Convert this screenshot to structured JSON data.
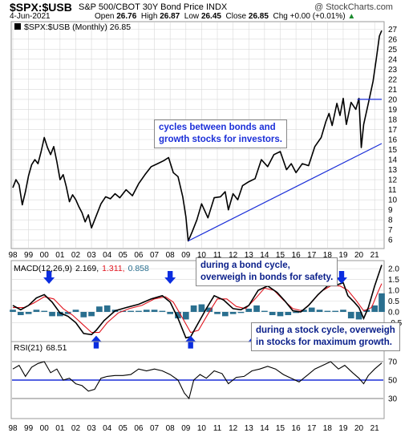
{
  "header": {
    "symbol": "$SPX:$USB",
    "name": "S&P 500/CBOT 30Y Bond Price INDX",
    "date": "4-Jun-2021",
    "open_label": "Open",
    "open": "26.76",
    "high_label": "High",
    "high": "26.87",
    "low_label": "Low",
    "low": "26.45",
    "close_label": "Close",
    "close": "26.85",
    "chg_label": "Chg",
    "chg": "+0.00 (+0.01%)",
    "chg_arrow": "▲",
    "logo": "@ StockCharts.com"
  },
  "colors": {
    "price": "#000000",
    "macd": "#000000",
    "signal": "#e0141e",
    "histogram": "#2a6f8f",
    "trendline": "#1b2fd8",
    "arrow": "#0b2de0",
    "rsi_band": "#1b2fd8",
    "grid": "#d9d9d9"
  },
  "annotations": {
    "callout1_line1": "cycles between bonds and",
    "callout1_line2": "growth stocks for investors.",
    "callout2_line1": "during a bond cycle,",
    "callout2_line2": "overweigh in bonds for safety.",
    "callout3_line1": "during a stock cycle, overweigh",
    "callout3_line2": "in stocks for maximum growth."
  },
  "chart_data": [
    {
      "type": "line",
      "title": "$SPX:$USB (Monthly) 26.85",
      "x_labels": [
        "98",
        "99",
        "00",
        "01",
        "02",
        "03",
        "04",
        "05",
        "06",
        "07",
        "08",
        "09",
        "10",
        "11",
        "12",
        "13",
        "14",
        "15",
        "16",
        "17",
        "18",
        "19",
        "20",
        "21"
      ],
      "x_range": [
        1998.0,
        2021.5
      ],
      "ylim": [
        5.3,
        27.5
      ],
      "y_ticks": [
        6,
        7,
        8,
        9,
        10,
        11,
        12,
        13,
        14,
        15,
        16,
        17,
        18,
        19,
        20,
        21,
        22,
        23,
        24,
        25,
        26,
        27
      ],
      "grid": true,
      "series": [
        {
          "x": [
            1998.0,
            1998.2,
            1998.4,
            1998.6,
            1998.8,
            1999.0,
            1999.2,
            1999.4,
            1999.6,
            1999.8,
            2000.0,
            2000.2,
            2000.4,
            2000.6,
            2000.8,
            2001.0,
            2001.2,
            2001.4,
            2001.6,
            2001.8,
            2002.0,
            2002.2,
            2002.4,
            2002.6,
            2002.8,
            2003.0,
            2003.3,
            2003.6,
            2003.9,
            2004.2,
            2004.5,
            2004.8,
            2005.2,
            2005.6,
            2006.0,
            2006.4,
            2006.8,
            2007.2,
            2007.6,
            2007.9,
            2008.2,
            2008.5,
            2008.8,
            2009.0,
            2009.15,
            2009.4,
            2009.7,
            2010.0,
            2010.4,
            2010.8,
            2011.2,
            2011.5,
            2011.7,
            2012.0,
            2012.3,
            2012.6,
            2013.0,
            2013.4,
            2013.8,
            2014.2,
            2014.6,
            2015.0,
            2015.4,
            2015.7,
            2016.0,
            2016.4,
            2016.8,
            2017.2,
            2017.6,
            2017.9,
            2018.1,
            2018.3,
            2018.6,
            2018.8,
            2019.0,
            2019.2,
            2019.5,
            2019.8,
            2020.0,
            2020.15,
            2020.3,
            2020.6,
            2020.9,
            2021.1,
            2021.3,
            2021.45
          ],
          "y": [
            11.2,
            12.0,
            11.5,
            9.5,
            10.8,
            12.4,
            13.5,
            14.0,
            13.6,
            14.8,
            16.2,
            15.2,
            14.5,
            15.3,
            13.8,
            12.0,
            12.5,
            11.3,
            9.8,
            10.5,
            10.0,
            9.3,
            8.7,
            7.8,
            8.5,
            7.2,
            8.4,
            9.6,
            10.3,
            10.1,
            10.6,
            10.2,
            11.0,
            10.4,
            11.6,
            12.5,
            13.3,
            13.6,
            13.9,
            14.2,
            12.7,
            12.3,
            10.3,
            8.3,
            5.9,
            6.8,
            8.0,
            9.6,
            8.2,
            10.2,
            10.3,
            10.8,
            9.0,
            10.6,
            10.0,
            11.4,
            11.8,
            12.1,
            14.0,
            13.3,
            14.5,
            14.8,
            13.0,
            13.6,
            12.7,
            13.6,
            13.4,
            15.3,
            16.2,
            17.8,
            18.6,
            17.4,
            19.6,
            18.4,
            20.1,
            17.5,
            19.7,
            19.0,
            20.1,
            15.2,
            17.5,
            19.6,
            21.8,
            24.0,
            26.3,
            26.85
          ]
        },
        {
          "x": [
            2009.15,
            2021.45
          ],
          "y": [
            5.9,
            15.6
          ]
        },
        {
          "x": [
            2019.9,
            2021.45
          ],
          "y": [
            20.0,
            20.0
          ]
        }
      ]
    },
    {
      "type": "line",
      "title": "MACD(12,26,9) 2.169, 1.311, 0.858",
      "title_parts": [
        "MACD(12,26,9)",
        "2.169,",
        "1.311,",
        "0.858"
      ],
      "ylim": [
        -1.3,
        2.3
      ],
      "y_ticks": [
        -0.5,
        0.0,
        0.5,
        1.0,
        1.5,
        2.0
      ],
      "y_tick_labels": [
        "-0.5",
        "0.0",
        "0.5",
        "1.0",
        "1.5",
        "2.0"
      ],
      "series": [
        {
          "x": [
            1998.0,
            1998.5,
            1999.0,
            1999.5,
            2000.0,
            2000.5,
            2001.0,
            2001.5,
            2002.0,
            2002.5,
            2003.0,
            2003.3,
            2003.8,
            2004.5,
            2005.2,
            2006.0,
            2006.8,
            2007.5,
            2008.0,
            2008.5,
            2009.0,
            2009.3,
            2009.8,
            2010.3,
            2010.8,
            2011.4,
            2012.0,
            2012.5,
            2013.0,
            2013.6,
            2014.2,
            2014.8,
            2015.3,
            2015.8,
            2016.3,
            2016.8,
            2017.4,
            2018.0,
            2018.6,
            2019.0,
            2019.3,
            2019.7,
            2020.0,
            2020.3,
            2020.6,
            2021.0,
            2021.45
          ],
          "y": [
            0.3,
            0.1,
            0.3,
            0.65,
            0.8,
            0.45,
            -0.05,
            -0.2,
            -0.5,
            -1.0,
            -1.05,
            -0.85,
            -0.4,
            0.05,
            0.2,
            0.35,
            0.6,
            0.75,
            0.45,
            -0.3,
            -1.2,
            -1.15,
            -0.5,
            0.15,
            0.75,
            0.55,
            0.15,
            0.1,
            0.3,
            1.0,
            1.2,
            0.9,
            0.5,
            0.05,
            0.0,
            0.3,
            0.8,
            1.2,
            1.25,
            1.35,
            0.75,
            0.45,
            0.2,
            -0.3,
            0.2,
            1.2,
            2.17
          ]
        },
        {
          "x": [
            1998.0,
            1998.7,
            1999.3,
            2000.0,
            2000.6,
            2001.2,
            2001.8,
            2002.4,
            2003.0,
            2003.5,
            2004.0,
            2004.7,
            2005.4,
            2006.2,
            2007.0,
            2007.7,
            2008.2,
            2008.8,
            2009.3,
            2009.8,
            2010.4,
            2011.0,
            2011.6,
            2012.2,
            2012.8,
            2013.4,
            2014.0,
            2014.6,
            2015.2,
            2015.8,
            2016.4,
            2017.0,
            2017.6,
            2018.2,
            2018.8,
            2019.3,
            2019.8,
            2020.3,
            2020.8,
            2021.2,
            2021.45
          ],
          "y": [
            0.2,
            0.2,
            0.4,
            0.7,
            0.6,
            0.15,
            -0.15,
            -0.55,
            -0.95,
            -0.95,
            -0.5,
            -0.05,
            0.15,
            0.3,
            0.6,
            0.7,
            0.45,
            -0.3,
            -0.95,
            -0.85,
            -0.1,
            0.6,
            0.6,
            0.25,
            0.15,
            0.6,
            1.1,
            1.0,
            0.55,
            0.15,
            0.05,
            0.45,
            0.95,
            1.2,
            1.2,
            1.0,
            0.55,
            0.05,
            0.2,
            0.9,
            1.31
          ]
        }
      ],
      "histogram": {
        "x": [
          1998.0,
          1998.5,
          1999.0,
          1999.5,
          2000.0,
          2000.5,
          2001.0,
          2001.5,
          2002.0,
          2002.5,
          2003.0,
          2003.5,
          2004.0,
          2004.5,
          2005.0,
          2005.5,
          2006.0,
          2006.5,
          2007.0,
          2007.5,
          2008.0,
          2008.5,
          2009.0,
          2009.5,
          2010.0,
          2010.5,
          2011.0,
          2011.5,
          2012.0,
          2012.5,
          2013.0,
          2013.5,
          2014.0,
          2014.5,
          2015.0,
          2015.5,
          2016.0,
          2016.5,
          2017.0,
          2017.5,
          2018.0,
          2018.5,
          2019.0,
          2019.5,
          2020.0,
          2020.5,
          2021.0,
          2021.45
        ],
        "y": [
          0.1,
          -0.15,
          -0.1,
          0.1,
          0.05,
          -0.2,
          -0.2,
          -0.1,
          0.1,
          -0.25,
          -0.2,
          0.25,
          0.3,
          0.1,
          0.05,
          0.05,
          0.05,
          0.1,
          0.1,
          0.05,
          -0.1,
          -0.3,
          -0.35,
          0.3,
          0.35,
          0.2,
          -0.1,
          -0.2,
          -0.1,
          -0.05,
          0.15,
          0.3,
          0.05,
          -0.15,
          -0.2,
          -0.15,
          -0.05,
          0.1,
          0.2,
          0.1,
          0.05,
          0.05,
          0.1,
          -0.3,
          -0.35,
          0.1,
          0.3,
          0.86
        ]
      },
      "arrows_up_years": [
        2003.3,
        2009.3,
        2013.3,
        2016.6,
        2021.0
      ],
      "arrows_down_years": [
        2000.3,
        2008.0,
        2011.6,
        2014.9,
        2018.9
      ]
    },
    {
      "type": "line",
      "title": "RSI(21) 68.51",
      "title_parts": [
        "RSI(21)",
        "68.51"
      ],
      "ylim": [
        10,
        90
      ],
      "y_ticks": [
        30,
        50,
        70
      ],
      "bands": [
        30,
        50,
        70
      ],
      "series": [
        {
          "x": [
            1998.0,
            1998.4,
            1998.8,
            1999.2,
            1999.6,
            2000.0,
            2000.4,
            2000.8,
            2001.2,
            2001.6,
            2002.0,
            2002.4,
            2002.8,
            2003.2,
            2003.6,
            2004.0,
            2004.5,
            2005.0,
            2005.5,
            2006.0,
            2006.5,
            2007.0,
            2007.5,
            2008.0,
            2008.5,
            2008.9,
            2009.2,
            2009.5,
            2009.9,
            2010.3,
            2010.8,
            2011.3,
            2011.7,
            2012.2,
            2012.7,
            2013.2,
            2013.7,
            2014.2,
            2014.7,
            2015.2,
            2015.7,
            2016.2,
            2016.7,
            2017.2,
            2017.7,
            2018.2,
            2018.7,
            2019.1,
            2019.6,
            2020.0,
            2020.3,
            2020.6,
            2021.0,
            2021.45
          ],
          "y": [
            62,
            66,
            54,
            64,
            68,
            70,
            58,
            62,
            50,
            52,
            46,
            44,
            38,
            40,
            52,
            54,
            55,
            55,
            56,
            62,
            60,
            62,
            60,
            56,
            50,
            36,
            30,
            50,
            56,
            52,
            60,
            57,
            46,
            53,
            54,
            60,
            62,
            65,
            62,
            56,
            52,
            48,
            55,
            62,
            66,
            70,
            62,
            66,
            58,
            52,
            46,
            55,
            62,
            68.5
          ]
        }
      ]
    }
  ]
}
